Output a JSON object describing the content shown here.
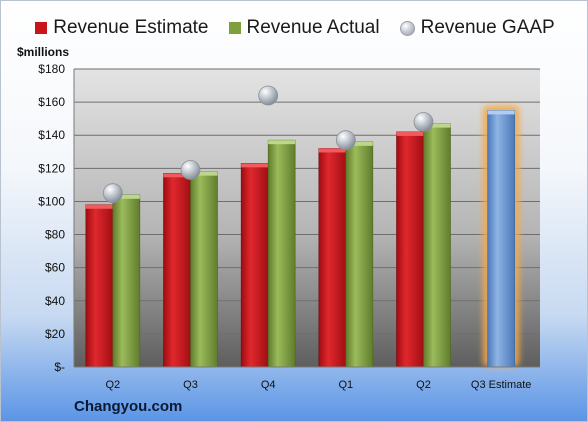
{
  "legend": {
    "estimate": "Revenue Estimate",
    "actual": "Revenue Actual",
    "gaap": "Revenue GAAP"
  },
  "units_label": "$millions",
  "footer": "Changyou.com",
  "colors": {
    "estimate": "#c8141b",
    "actual": "#7f9f3f",
    "gaap": "#b8bec8",
    "projection": "#6f9ad3",
    "projection_glow": "#f5a94a"
  },
  "chart_data": {
    "type": "bar",
    "categories": [
      "Q2",
      "Q3",
      "Q4",
      "Q1",
      "Q2",
      "Q3 Estimate"
    ],
    "series": [
      {
        "name": "Revenue Estimate",
        "values": [
          98,
          117,
          123,
          132,
          142,
          null
        ]
      },
      {
        "name": "Revenue Actual",
        "values": [
          104,
          118,
          137,
          136,
          147,
          155
        ]
      },
      {
        "name": "Revenue GAAP",
        "type": "scatter",
        "values": [
          105,
          119,
          164,
          137,
          148,
          null
        ]
      }
    ],
    "ylabel": "$millions",
    "ylim": [
      0,
      180
    ],
    "yticks": [
      0,
      20,
      40,
      60,
      80,
      100,
      120,
      140,
      160,
      180
    ],
    "ytick_labels": [
      "$-",
      "$20",
      "$40",
      "$60",
      "$80",
      "$100",
      "$120",
      "$140",
      "$160",
      "$180"
    ],
    "grid": true,
    "legend_position": "top"
  }
}
